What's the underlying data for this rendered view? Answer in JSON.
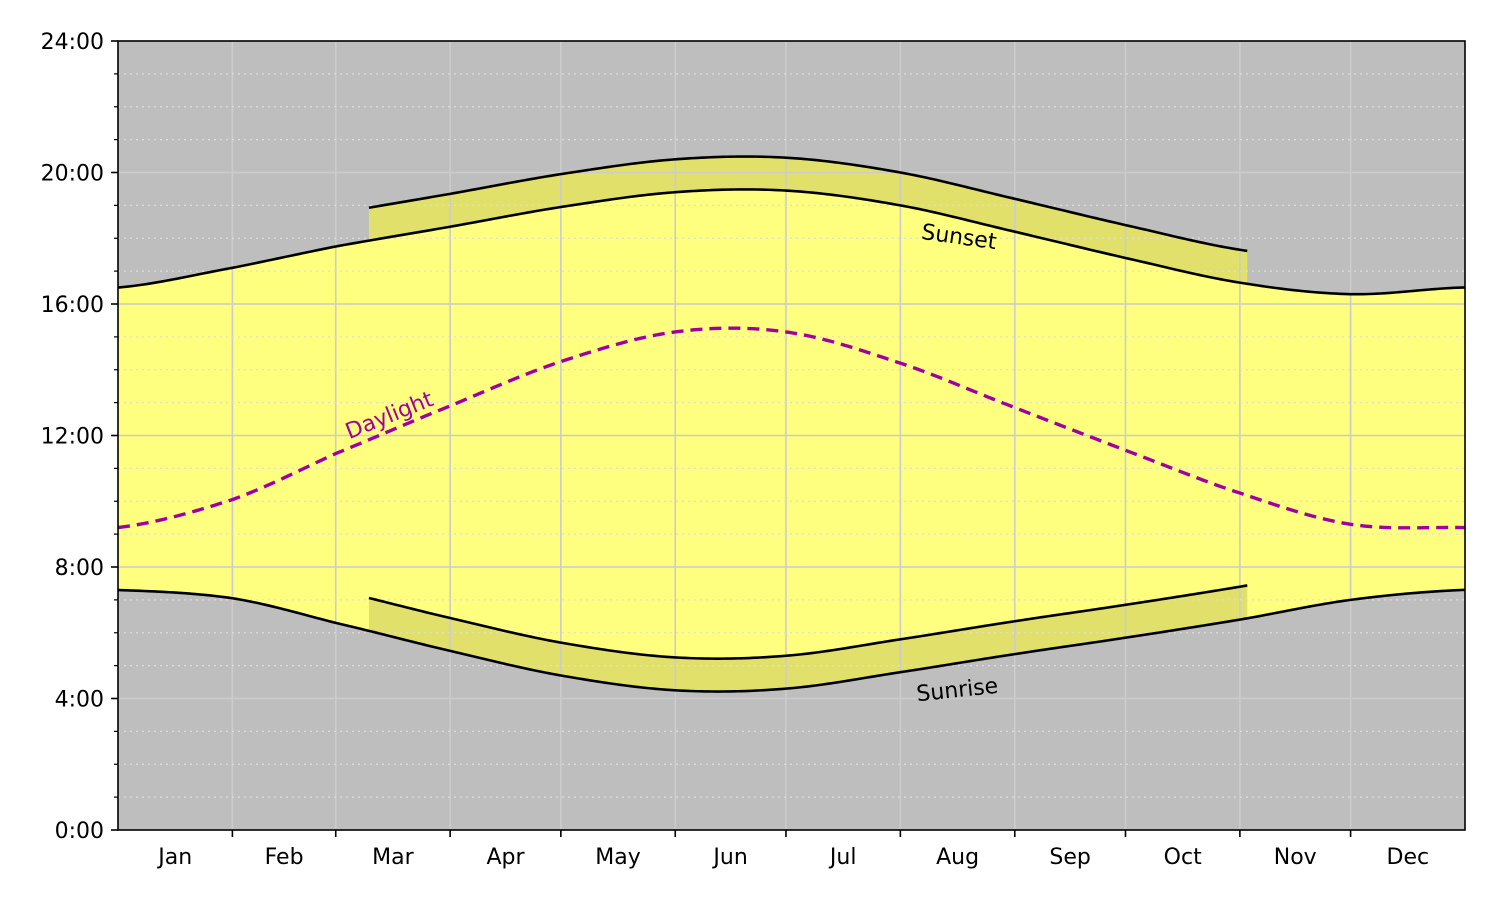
{
  "chart_data": {
    "type": "area",
    "title": "",
    "xlabel": "",
    "ylabel": "",
    "x_ticks": [
      "Jan",
      "Feb",
      "Mar",
      "Apr",
      "May",
      "Jun",
      "Jul",
      "Aug",
      "Sep",
      "Oct",
      "Nov",
      "Dec"
    ],
    "y_ticks": [
      "0:00",
      "4:00",
      "8:00",
      "12:00",
      "16:00",
      "20:00",
      "24:00"
    ],
    "xlim": [
      1,
      366
    ],
    "ylim": [
      0,
      24
    ],
    "grid": true,
    "legend": "none",
    "dst_range": {
      "start_day": 69,
      "end_day": 307,
      "shift_hours": 1
    },
    "x_day_of_year": [
      1,
      32,
      60,
      91,
      121,
      152,
      182,
      213,
      244,
      274,
      305,
      335,
      365
    ],
    "series": [
      {
        "name": "Sunrise",
        "values": [
          7.3,
          7.05,
          6.3,
          5.45,
          4.7,
          4.25,
          4.3,
          4.8,
          5.35,
          5.85,
          6.4,
          7.0,
          7.3
        ]
      },
      {
        "name": "Sunset",
        "values": [
          16.5,
          17.1,
          17.75,
          18.35,
          18.95,
          19.4,
          19.45,
          19.0,
          18.2,
          17.4,
          16.65,
          16.3,
          16.5
        ]
      },
      {
        "name": "Daylight",
        "values": [
          9.2,
          10.05,
          11.45,
          12.9,
          14.25,
          15.15,
          15.15,
          14.2,
          12.85,
          11.55,
          10.25,
          9.3,
          9.2
        ]
      }
    ],
    "annotations": [
      {
        "text": "Sunset"
      },
      {
        "text": "Sunrise"
      },
      {
        "text": "Daylight"
      }
    ],
    "colors": {
      "night": "#bebebe",
      "day": "#ffff7f",
      "dst_band": "#e0e06b",
      "sun_line": "#000000",
      "daylight_line": "#a000a0",
      "grid_major": "#cccccc",
      "grid_minor": "#dddddd"
    }
  }
}
